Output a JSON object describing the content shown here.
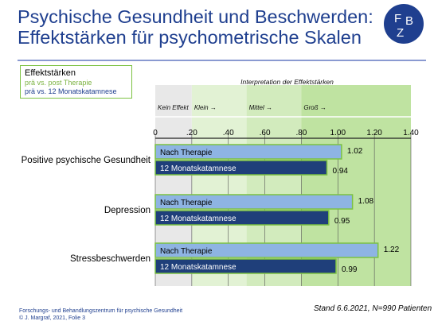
{
  "title_line1": "Psychische Gesundheit und Beschwerden:",
  "title_line2": "Effektstärken für psychometrische Skalen",
  "logo": {
    "letter1": "F",
    "letter2": "B",
    "letter3": "Z",
    "color": "#1f3f8f"
  },
  "legend": {
    "title": "Effektstärken",
    "item_a": "prä vs. post Therapie",
    "item_b": "prä vs. 12 Monatskatamnese"
  },
  "footer": {
    "line1": "Forschungs- und Behandlungszentrum für psychische Gesundheit",
    "line2": "© J. Margraf, 2021, Folie 3"
  },
  "note": "Stand 6.6.2021, N=990 Patienten",
  "chart_data": {
    "type": "bar",
    "orientation": "horizontal",
    "xlim": [
      0,
      1.4
    ],
    "tick_values": [
      0,
      0.2,
      0.4,
      0.6,
      0.8,
      1.0,
      1.2,
      1.4
    ],
    "tick_labels": [
      "0",
      ".20",
      ".40",
      ".60",
      ".80",
      "1.00",
      "1.20",
      "1.40"
    ],
    "interpretation_title": "Interpretation der Effektstärken",
    "zones": [
      {
        "label": "Kein Effekt",
        "from": 0,
        "to": 0.2,
        "color": "#e8e8e8"
      },
      {
        "label": "Klein →",
        "from": 0.2,
        "to": 0.5,
        "color": "#e2f2d4"
      },
      {
        "label": "Mittel →",
        "from": 0.5,
        "to": 0.8,
        "color": "#d2ebbd"
      },
      {
        "label": "Groß →",
        "from": 0.8,
        "to": 1.4,
        "color": "#bfe3a1"
      }
    ],
    "categories": [
      "Positive psychische Gesundheit",
      "Depression",
      "Stressbeschwerden"
    ],
    "series": [
      {
        "name": "Nach Therapie",
        "values": [
          1.02,
          1.08,
          1.22
        ],
        "value_labels": [
          "1.02",
          "1.08",
          "1.22"
        ],
        "color": "#8eb4e3",
        "border": "#7cc242"
      },
      {
        "name": "12 Monatskatamnese",
        "values": [
          0.94,
          0.95,
          0.99
        ],
        "value_labels": [
          "0.94",
          "0.95",
          "0.99"
        ],
        "color": "#1f3f7a",
        "border": "#7cc242"
      }
    ]
  }
}
